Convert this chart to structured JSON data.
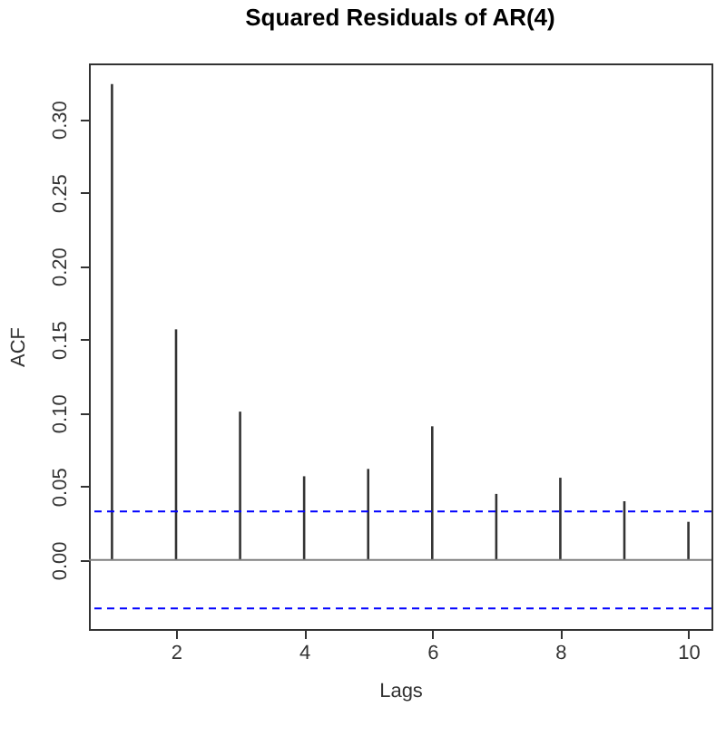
{
  "chart_data": {
    "type": "bar",
    "title": "Squared Residuals of AR(4)",
    "xlabel": "Lags",
    "ylabel": "ACF",
    "x": [
      1,
      2,
      3,
      4,
      5,
      6,
      7,
      8,
      9,
      10
    ],
    "values": [
      0.324,
      0.157,
      0.101,
      0.057,
      0.062,
      0.091,
      0.045,
      0.056,
      0.04,
      0.026
    ],
    "color": "#333333",
    "xlim": [
      0.64,
      10.36
    ],
    "xticks": [
      2,
      4,
      6,
      8,
      10
    ],
    "ylim": [
      -0.047,
      0.338
    ],
    "yticks": [
      {
        "value": 0,
        "label": "0.00"
      },
      {
        "value": 0.05,
        "label": "0.05"
      },
      {
        "value": 0.1,
        "label": "0.10"
      },
      {
        "value": 0.15,
        "label": "0.15"
      },
      {
        "value": 0.2,
        "label": "0.20"
      },
      {
        "value": 0.25,
        "label": "0.25"
      },
      {
        "value": 0.3,
        "label": "0.30"
      }
    ],
    "grid": false,
    "ref_lines": [
      {
        "axis": "y",
        "value": 0,
        "color": "#808080",
        "line_style": "solid"
      },
      {
        "axis": "y",
        "value": 0.033,
        "color": "#0000ff",
        "line_style": "dashed"
      },
      {
        "axis": "y",
        "value": -0.033,
        "color": "#0000ff",
        "line_style": "dashed"
      }
    ]
  }
}
